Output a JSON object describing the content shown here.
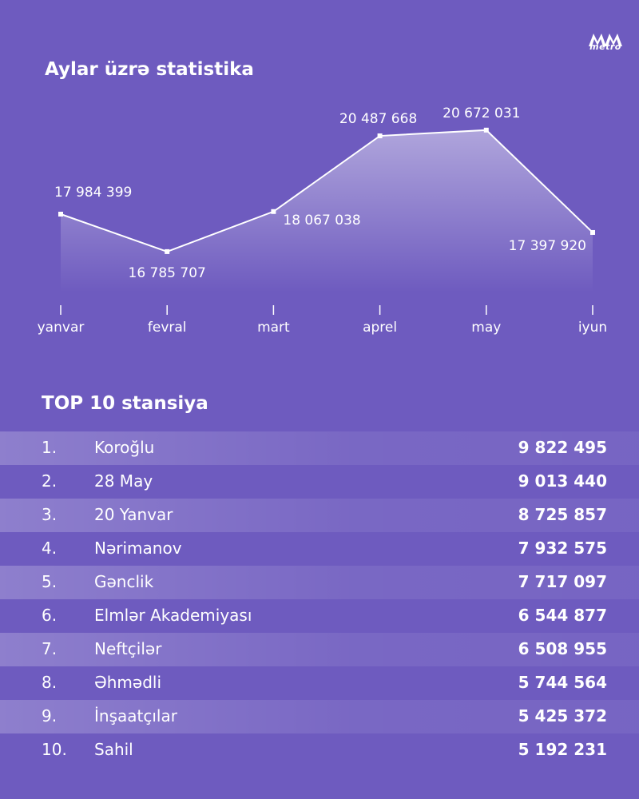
{
  "brand": {
    "logo_text": "metro"
  },
  "chart_title": "Aylar üzrə statistika",
  "chart_data": {
    "type": "area",
    "title": "Aylar üzrə statistika",
    "categories": [
      "yanvar",
      "fevral",
      "mart",
      "aprel",
      "may",
      "iyun"
    ],
    "values": [
      17984399,
      16785707,
      18067038,
      20487668,
      20672031,
      17397920
    ],
    "value_labels": [
      "17 984 399",
      "16 785 707",
      "18 067 038",
      "20 487 668",
      "20 672 031",
      "17 397 920"
    ],
    "xlabel": "",
    "ylabel": "",
    "grid": false,
    "colors": {
      "line": "#ffffff",
      "fill": "#ffffff"
    }
  },
  "table": {
    "title": "TOP 10 stansiya",
    "rows": [
      {
        "rank": "1.",
        "name": "Koroğlu",
        "count": "9 822 495"
      },
      {
        "rank": "2.",
        "name": "28 May",
        "count": "9 013 440"
      },
      {
        "rank": "3.",
        "name": "20 Yanvar",
        "count": "8 725 857"
      },
      {
        "rank": "4.",
        "name": "Nərimanov",
        "count": "7 932 575"
      },
      {
        "rank": "5.",
        "name": "Gənclik",
        "count": "7 717 097"
      },
      {
        "rank": "6.",
        "name": "Elmlər Akademiyası",
        "count": "6 544 877"
      },
      {
        "rank": "7.",
        "name": "Neftçilər",
        "count": "6 508 955"
      },
      {
        "rank": "8.",
        "name": "Əhmədli",
        "count": "5 744 564"
      },
      {
        "rank": "9.",
        "name": "İnşaatçılar",
        "count": "5 425 372"
      },
      {
        "rank": "10.",
        "name": "Sahil",
        "count": "5 192 231"
      }
    ]
  },
  "colors": {
    "background": "#6e5bbf",
    "text": "#ffffff"
  }
}
